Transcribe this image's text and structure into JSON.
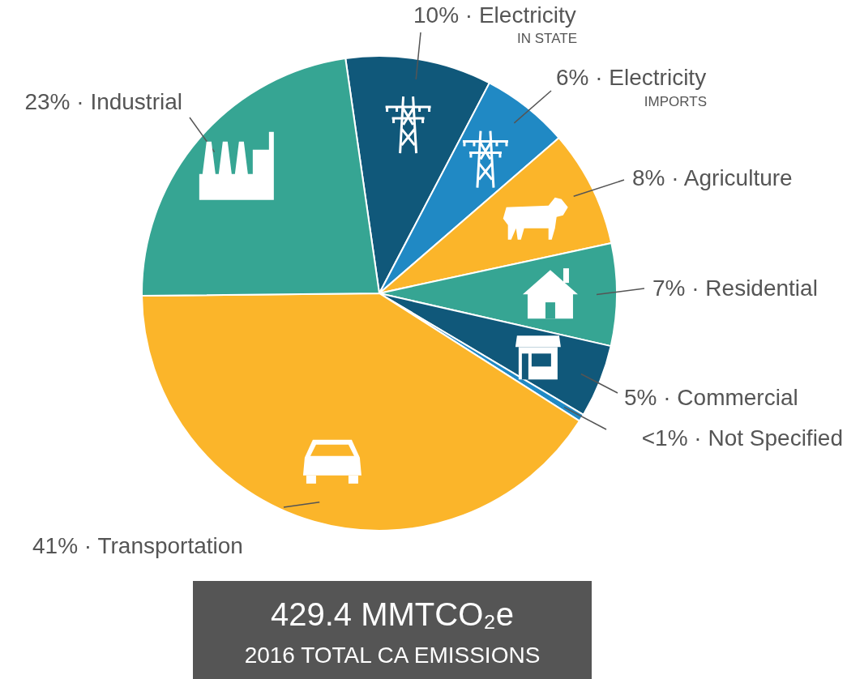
{
  "chart_data": {
    "type": "pie",
    "categories": [
      "Electricity\nIN STATE",
      "Electricity\nIMPORTS",
      "Agriculture",
      "Residential",
      "Commercial",
      "Not Specified",
      "Transportation",
      "Industrial"
    ],
    "values": [
      10,
      6,
      8,
      7,
      5,
      0.5,
      41,
      23
    ],
    "value_labels": [
      "10% ·",
      "6% ·",
      "8% ·",
      "7% ·",
      "5% ·",
      "<1% ·",
      "41% ·",
      "23% ·"
    ],
    "colors": [
      "#10587a",
      "#2089c4",
      "#fbb52a",
      "#36a593",
      "#10587a",
      "#2089c4",
      "#fbb52a",
      "#36a593"
    ],
    "annotations": [
      "429.4 MMTCO₂e",
      "2016 TOTAL CA EMISSIONS"
    ]
  }
}
